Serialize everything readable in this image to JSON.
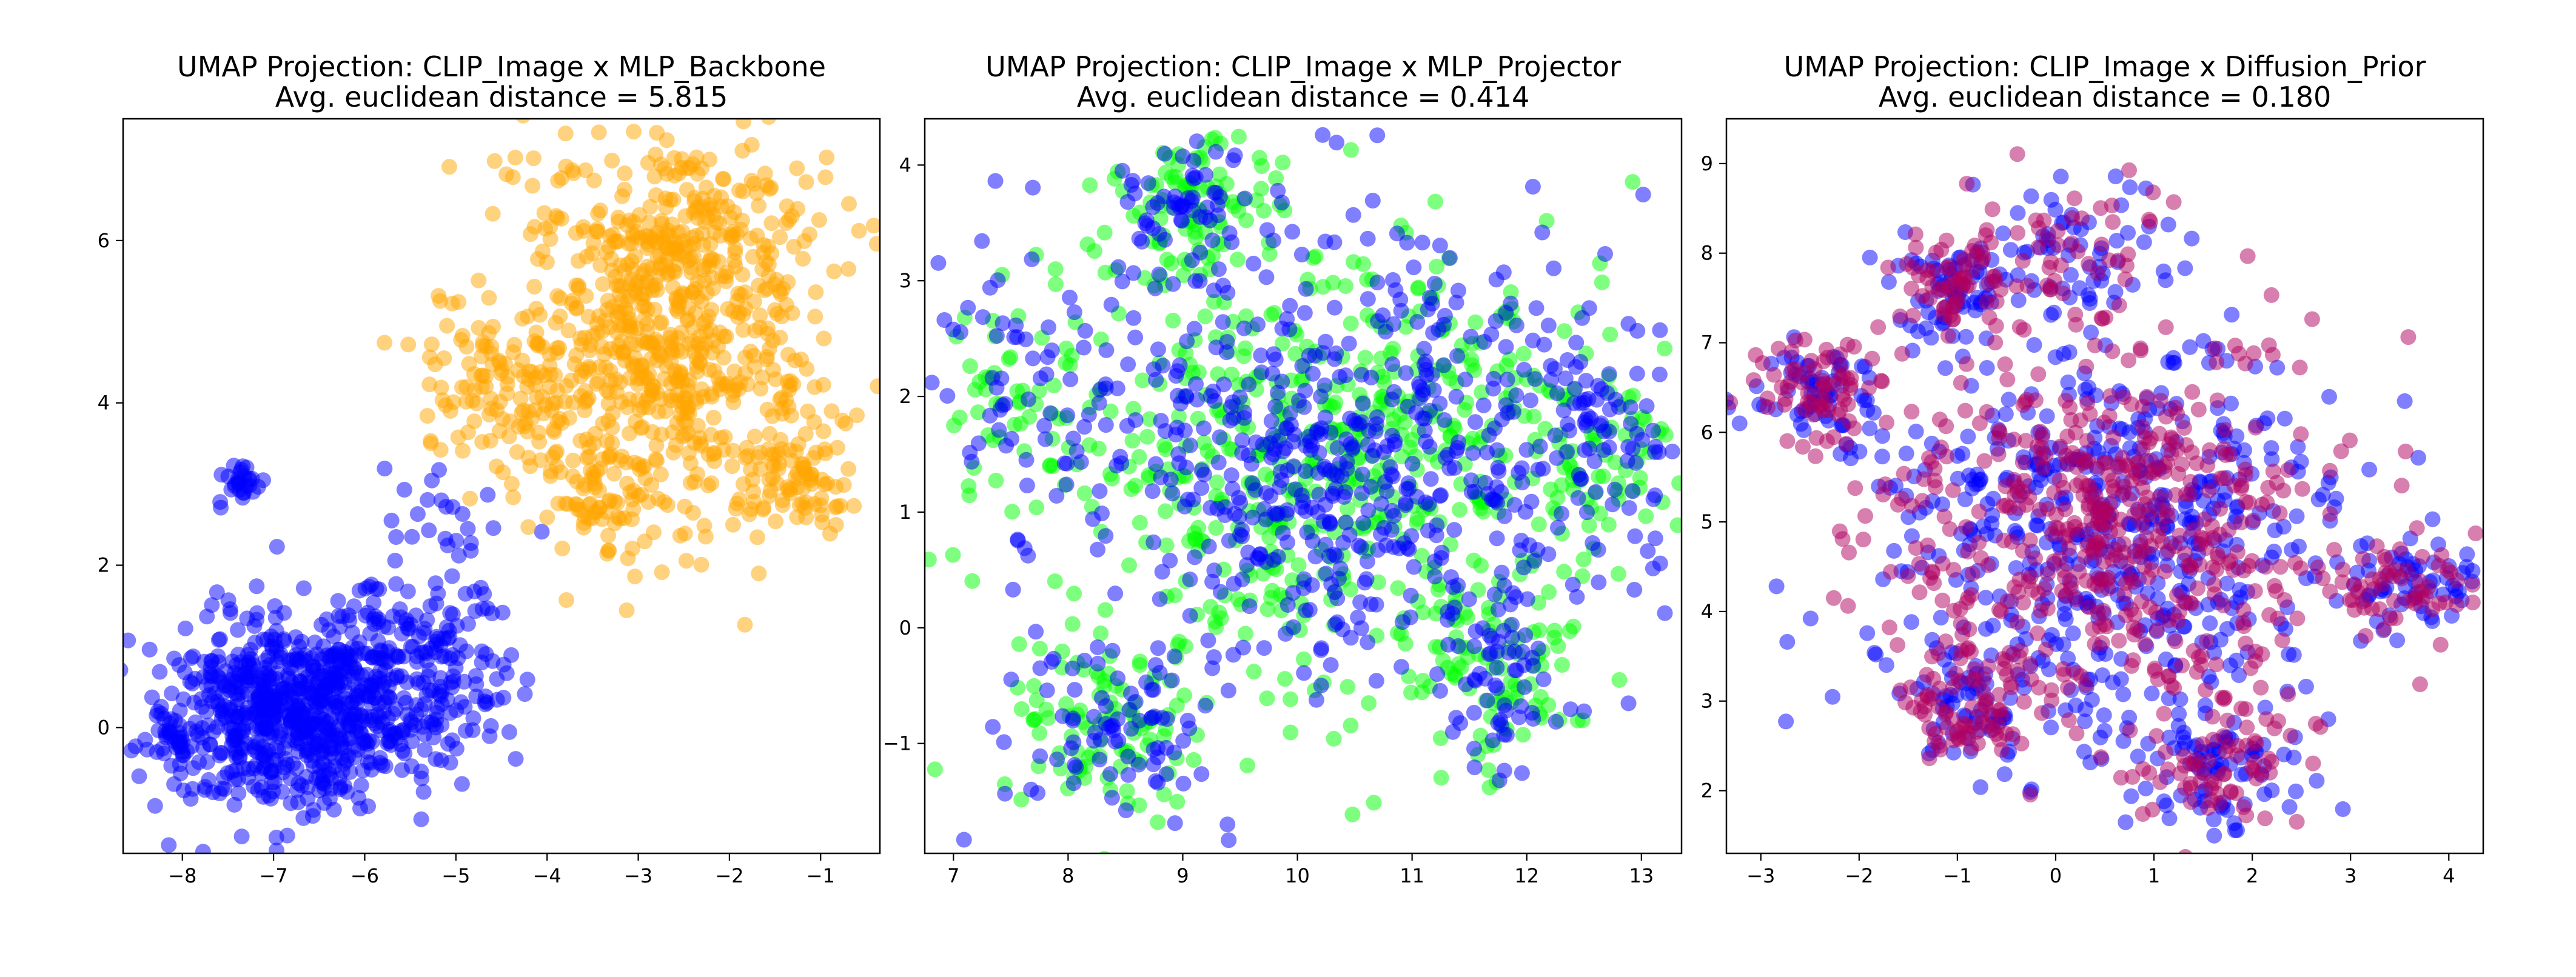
{
  "chart_data": [
    {
      "type": "scatter",
      "title": "UMAP Projection: CLIP_Image x MLP_Backbone",
      "subtitle": "Avg. euclidean distance = 5.815",
      "xlabel": "",
      "ylabel": "",
      "xlim": [
        -8.65,
        -0.35
      ],
      "ylim": [
        -1.55,
        7.5
      ],
      "xticks": [
        -8,
        -7,
        -6,
        -5,
        -4,
        -3,
        -2,
        -1
      ],
      "yticks": [
        0,
        2,
        4,
        6
      ],
      "grid": false,
      "series": [
        {
          "color": "#0000ff",
          "opacity": 0.5,
          "point_count": 1000,
          "clusters": [
            {
              "cx": -6.7,
              "cy": 0.2,
              "sx": 0.72,
              "sy": 0.58,
              "weight": 0.78
            },
            {
              "cx": -5.6,
              "cy": 1.2,
              "sx": 0.45,
              "sy": 0.45,
              "weight": 0.08
            },
            {
              "cx": -4.9,
              "cy": 0.6,
              "sx": 0.35,
              "sy": 0.55,
              "weight": 0.06
            },
            {
              "cx": -7.4,
              "cy": 3.0,
              "sx": 0.12,
              "sy": 0.15,
              "weight": 0.03
            },
            {
              "cx": -5.1,
              "cy": 2.6,
              "sx": 0.4,
              "sy": 0.35,
              "weight": 0.03
            },
            {
              "cx": -8.1,
              "cy": -0.1,
              "sx": 0.1,
              "sy": 0.1,
              "weight": 0.02
            }
          ]
        },
        {
          "color": "#ffa500",
          "opacity": 0.5,
          "point_count": 1000,
          "clusters": [
            {
              "cx": -2.7,
              "cy": 4.6,
              "sx": 0.9,
              "sy": 1.0,
              "weight": 0.55
            },
            {
              "cx": -2.6,
              "cy": 6.2,
              "sx": 0.8,
              "sy": 0.45,
              "weight": 0.18
            },
            {
              "cx": -4.3,
              "cy": 4.2,
              "sx": 0.55,
              "sy": 0.55,
              "weight": 0.12
            },
            {
              "cx": -1.3,
              "cy": 3.1,
              "sx": 0.35,
              "sy": 0.45,
              "weight": 0.08
            },
            {
              "cx": -3.3,
              "cy": 2.7,
              "sx": 0.5,
              "sy": 0.3,
              "weight": 0.07
            }
          ]
        }
      ]
    },
    {
      "type": "scatter",
      "title": "UMAP Projection: CLIP_Image x MLP_Projector",
      "subtitle": "Avg. euclidean distance = 0.414",
      "xlabel": "",
      "ylabel": "",
      "xlim": [
        6.75,
        13.35
      ],
      "ylim": [
        -1.95,
        4.4
      ],
      "xticks": [
        7,
        8,
        9,
        10,
        11,
        12,
        13
      ],
      "yticks": [
        -1,
        0,
        1,
        2,
        3,
        4
      ],
      "grid": false,
      "series": [
        {
          "color": "#00ff00",
          "opacity": 0.5,
          "point_count": 900,
          "clusters": [
            {
              "cx": 10.2,
              "cy": 1.5,
              "sx": 1.25,
              "sy": 1.05,
              "weight": 0.6
            },
            {
              "cx": 8.4,
              "cy": -0.9,
              "sx": 0.45,
              "sy": 0.45,
              "weight": 0.1
            },
            {
              "cx": 11.8,
              "cy": -0.4,
              "sx": 0.35,
              "sy": 0.4,
              "weight": 0.08
            },
            {
              "cx": 9.1,
              "cy": 3.6,
              "sx": 0.35,
              "sy": 0.3,
              "weight": 0.07
            },
            {
              "cx": 12.6,
              "cy": 1.6,
              "sx": 0.4,
              "sy": 0.5,
              "weight": 0.08
            },
            {
              "cx": 7.5,
              "cy": 2.2,
              "sx": 0.4,
              "sy": 0.5,
              "weight": 0.07
            }
          ]
        },
        {
          "color": "#0000ff",
          "opacity": 0.5,
          "point_count": 900,
          "clusters": [
            {
              "cx": 10.3,
              "cy": 1.5,
              "sx": 1.2,
              "sy": 1.0,
              "weight": 0.62
            },
            {
              "cx": 8.4,
              "cy": -0.9,
              "sx": 0.45,
              "sy": 0.45,
              "weight": 0.1
            },
            {
              "cx": 11.8,
              "cy": -0.4,
              "sx": 0.35,
              "sy": 0.4,
              "weight": 0.07
            },
            {
              "cx": 9.1,
              "cy": 3.6,
              "sx": 0.35,
              "sy": 0.3,
              "weight": 0.07
            },
            {
              "cx": 12.6,
              "cy": 1.6,
              "sx": 0.4,
              "sy": 0.5,
              "weight": 0.07
            },
            {
              "cx": 7.5,
              "cy": 2.2,
              "sx": 0.4,
              "sy": 0.5,
              "weight": 0.07
            }
          ]
        }
      ]
    },
    {
      "type": "scatter",
      "title": "UMAP Projection: CLIP_Image x Diffusion_Prior",
      "subtitle": "Avg. euclidean distance = 0.180",
      "xlabel": "",
      "ylabel": "",
      "xlim": [
        -3.35,
        4.35
      ],
      "ylim": [
        1.3,
        9.5
      ],
      "xticks": [
        -3,
        -2,
        -1,
        0,
        1,
        2,
        3,
        4
      ],
      "yticks": [
        2,
        3,
        4,
        5,
        6,
        7,
        8,
        9
      ],
      "grid": false,
      "series": [
        {
          "color": "#0000ff",
          "opacity": 0.5,
          "point_count": 900,
          "clusters": [
            {
              "cx": 0.6,
              "cy": 4.9,
              "sx": 1.2,
              "sy": 1.1,
              "weight": 0.58
            },
            {
              "cx": -2.5,
              "cy": 6.5,
              "sx": 0.4,
              "sy": 0.3,
              "weight": 0.07
            },
            {
              "cx": 3.6,
              "cy": 4.3,
              "sx": 0.35,
              "sy": 0.25,
              "weight": 0.06
            },
            {
              "cx": 0.2,
              "cy": 8.0,
              "sx": 0.45,
              "sy": 0.5,
              "weight": 0.08
            },
            {
              "cx": 1.6,
              "cy": 2.2,
              "sx": 0.4,
              "sy": 0.35,
              "weight": 0.07
            },
            {
              "cx": -0.9,
              "cy": 2.9,
              "sx": 0.35,
              "sy": 0.35,
              "weight": 0.07
            },
            {
              "cx": -1.0,
              "cy": 7.6,
              "sx": 0.3,
              "sy": 0.25,
              "weight": 0.07
            }
          ]
        },
        {
          "color": "#b0005f",
          "opacity": 0.5,
          "point_count": 900,
          "clusters": [
            {
              "cx": 0.6,
              "cy": 4.9,
              "sx": 1.2,
              "sy": 1.1,
              "weight": 0.58
            },
            {
              "cx": -2.5,
              "cy": 6.5,
              "sx": 0.4,
              "sy": 0.3,
              "weight": 0.07
            },
            {
              "cx": 3.6,
              "cy": 4.3,
              "sx": 0.35,
              "sy": 0.25,
              "weight": 0.06
            },
            {
              "cx": 0.2,
              "cy": 8.0,
              "sx": 0.45,
              "sy": 0.5,
              "weight": 0.08
            },
            {
              "cx": 1.6,
              "cy": 2.2,
              "sx": 0.4,
              "sy": 0.35,
              "weight": 0.07
            },
            {
              "cx": -0.9,
              "cy": 2.9,
              "sx": 0.35,
              "sy": 0.35,
              "weight": 0.07
            },
            {
              "cx": -1.0,
              "cy": 7.6,
              "sx": 0.3,
              "sy": 0.25,
              "weight": 0.07
            }
          ]
        }
      ]
    }
  ]
}
